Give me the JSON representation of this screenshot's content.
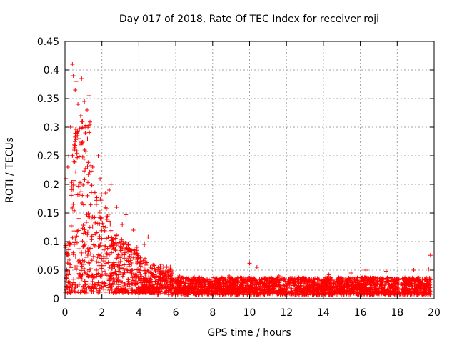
{
  "chart_data": {
    "type": "scatter",
    "title": "Day 017 of 2018, Rate Of TEC Index for receiver roji",
    "xlabel": "GPS time / hours",
    "ylabel": "ROTI / TECUs",
    "xlim": [
      0,
      20
    ],
    "ylim": [
      0,
      0.45
    ],
    "xticks": [
      0,
      2,
      4,
      6,
      8,
      10,
      12,
      14,
      16,
      18,
      20
    ],
    "yticks": [
      0,
      0.05,
      0.1,
      0.15,
      0.2,
      0.25,
      0.3,
      0.35,
      0.4,
      0.45
    ],
    "xtick_labels": [
      "0",
      "2",
      "4",
      "6",
      "8",
      "10",
      "12",
      "14",
      "16",
      "18",
      "20"
    ],
    "ytick_labels": [
      "0",
      "0.05",
      "0.1",
      "0.15",
      "0.2",
      "0.25",
      "0.3",
      "0.35",
      "0.4",
      "0.45"
    ],
    "grid": true,
    "marker": "+",
    "color": "#ff0000",
    "series": [
      {
        "name": "ROTI",
        "points": [
          [
            0.4,
            0.41
          ],
          [
            0.45,
            0.39
          ],
          [
            0.6,
            0.38
          ],
          [
            0.9,
            0.385
          ],
          [
            0.55,
            0.365
          ],
          [
            0.7,
            0.34
          ],
          [
            1.3,
            0.355
          ],
          [
            1.05,
            0.345
          ],
          [
            0.85,
            0.32
          ],
          [
            1.2,
            0.33
          ],
          [
            0.3,
            0.3
          ],
          [
            0.95,
            0.31
          ],
          [
            1.35,
            0.305
          ],
          [
            0.75,
            0.28
          ],
          [
            1.1,
            0.29
          ],
          [
            0.2,
            0.25
          ],
          [
            0.5,
            0.26
          ],
          [
            1.8,
            0.25
          ],
          [
            2.5,
            0.2
          ],
          [
            2.4,
            0.19
          ],
          [
            0.05,
            0.21
          ],
          [
            0.15,
            0.23
          ],
          [
            1.5,
            0.23
          ],
          [
            1.9,
            0.21
          ],
          [
            2.2,
            0.185
          ],
          [
            2.8,
            0.16
          ],
          [
            3.3,
            0.147
          ],
          [
            3.1,
            0.13
          ],
          [
            3.7,
            0.12
          ],
          [
            4.5,
            0.108
          ],
          [
            4.3,
            0.095
          ],
          [
            3.9,
            0.09
          ],
          [
            5.2,
            0.06
          ],
          [
            5.5,
            0.055
          ],
          [
            5.8,
            0.045
          ],
          [
            10.0,
            0.062
          ],
          [
            10.4,
            0.055
          ],
          [
            19.8,
            0.076
          ],
          [
            19.7,
            0.052
          ],
          [
            18.9,
            0.05
          ],
          [
            16.3,
            0.05
          ],
          [
            17.4,
            0.048
          ],
          [
            15.5,
            0.045
          ],
          [
            14.3,
            0.042
          ],
          [
            8.9,
            0.04
          ],
          [
            7.0,
            0.038
          ],
          [
            11.6,
            0.04
          ],
          [
            12.9,
            0.037
          ],
          [
            6.2,
            0.04
          ],
          [
            9.5,
            0.036
          ]
        ]
      }
    ]
  }
}
